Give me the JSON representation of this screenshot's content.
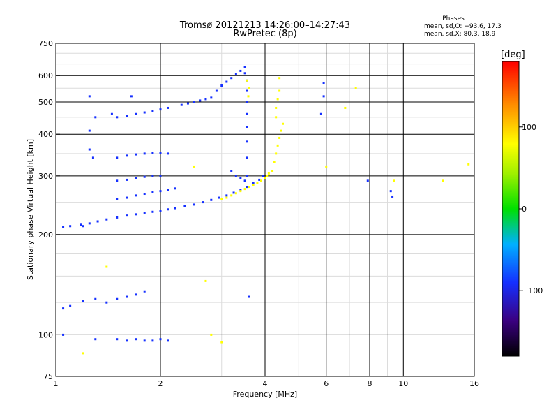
{
  "title_line1": "Tromsø 20121213 14:26:00–14:27:43",
  "title_line2": "RwPretec (8p)",
  "stats": {
    "title": "Phases",
    "o_line": "mean, sd,O:  −93.6, 17.3",
    "x_line": "mean, sd,X:  80.3, 18.9"
  },
  "colorbar": {
    "unit": "[deg]",
    "range": [
      -180,
      180
    ],
    "ticks": [
      {
        "value": 100,
        "label": "100"
      },
      {
        "value": 0,
        "label": "0"
      },
      {
        "value": -100,
        "label": "−100"
      }
    ]
  },
  "chart_data": {
    "type": "scatter",
    "xlabel": "Frequency [MHz]",
    "ylabel": "Stationary phase Virtual Height [km]",
    "xscale": "log",
    "yscale": "log",
    "xlim": [
      1,
      16
    ],
    "ylim": [
      75,
      750
    ],
    "xticks": [
      {
        "value": 1,
        "label": "1"
      },
      {
        "value": 2,
        "label": "2"
      },
      {
        "value": 4,
        "label": "4"
      },
      {
        "value": 6,
        "label": "6"
      },
      {
        "value": 8,
        "label": "8"
      },
      {
        "value": 10,
        "label": "10"
      },
      {
        "value": 16,
        "label": "16"
      }
    ],
    "yticks": [
      {
        "value": 75,
        "label": "75"
      },
      {
        "value": 100,
        "label": "100"
      },
      {
        "value": 200,
        "label": "200"
      },
      {
        "value": 300,
        "label": "300"
      },
      {
        "value": 400,
        "label": "400"
      },
      {
        "value": 500,
        "label": "500"
      },
      {
        "value": 600,
        "label": "600"
      },
      {
        "value": 750,
        "label": "750"
      }
    ],
    "grid_major_x": [
      2,
      4,
      6,
      8,
      10
    ],
    "grid_major_y": [
      100,
      200,
      300,
      400,
      500,
      600
    ],
    "grid_minor_x": [
      3,
      5,
      7,
      9
    ],
    "grid_minor_y": [
      125,
      150,
      175,
      250,
      350,
      450,
      550,
      650,
      700
    ],
    "color_scale": "rainbow, black (−180°) → blue (−100°) → cyan → green (0°) → yellow (+100°) → red (+180°)",
    "series": [
      {
        "name": "O",
        "phase_deg": -100,
        "points": [
          [
            1.05,
            211
          ],
          [
            1.1,
            212
          ],
          [
            1.18,
            214
          ],
          [
            1.25,
            216
          ],
          [
            1.32,
            219
          ],
          [
            1.4,
            222
          ],
          [
            1.5,
            225
          ],
          [
            1.6,
            228
          ],
          [
            1.7,
            230
          ],
          [
            1.8,
            232
          ],
          [
            1.9,
            234
          ],
          [
            2.0,
            236
          ],
          [
            2.1,
            238
          ],
          [
            2.2,
            240
          ],
          [
            2.35,
            243
          ],
          [
            2.5,
            246
          ],
          [
            2.65,
            250
          ],
          [
            2.8,
            254
          ],
          [
            2.95,
            258
          ],
          [
            3.1,
            262
          ],
          [
            3.25,
            267
          ],
          [
            3.4,
            272
          ],
          [
            3.55,
            278
          ],
          [
            3.7,
            285
          ],
          [
            3.85,
            292
          ],
          [
            3.95,
            300
          ],
          [
            1.5,
            255
          ],
          [
            1.6,
            258
          ],
          [
            1.7,
            262
          ],
          [
            1.8,
            265
          ],
          [
            1.9,
            268
          ],
          [
            2.0,
            270
          ],
          [
            2.1,
            272
          ],
          [
            2.2,
            275
          ],
          [
            1.5,
            290
          ],
          [
            1.6,
            292
          ],
          [
            1.7,
            295
          ],
          [
            1.8,
            298
          ],
          [
            1.9,
            300
          ],
          [
            2.0,
            300
          ],
          [
            1.5,
            340
          ],
          [
            1.6,
            345
          ],
          [
            1.7,
            348
          ],
          [
            1.8,
            350
          ],
          [
            1.9,
            352
          ],
          [
            2.0,
            352
          ],
          [
            2.1,
            350
          ],
          [
            1.5,
            450
          ],
          [
            1.6,
            455
          ],
          [
            1.7,
            460
          ],
          [
            1.8,
            465
          ],
          [
            1.9,
            470
          ],
          [
            2.0,
            475
          ],
          [
            2.1,
            480
          ],
          [
            2.3,
            490
          ],
          [
            2.4,
            495
          ],
          [
            2.5,
            500
          ],
          [
            2.6,
            505
          ],
          [
            2.7,
            510
          ],
          [
            2.8,
            515
          ],
          [
            2.9,
            540
          ],
          [
            3.0,
            560
          ],
          [
            3.1,
            575
          ],
          [
            3.2,
            590
          ],
          [
            3.3,
            605
          ],
          [
            3.4,
            620
          ],
          [
            3.5,
            635
          ],
          [
            3.55,
            300
          ],
          [
            3.55,
            340
          ],
          [
            3.55,
            380
          ],
          [
            3.55,
            420
          ],
          [
            3.55,
            460
          ],
          [
            3.55,
            500
          ],
          [
            3.55,
            540
          ],
          [
            3.55,
            580
          ],
          [
            3.5,
            610
          ],
          [
            3.2,
            310
          ],
          [
            3.3,
            300
          ],
          [
            3.4,
            295
          ],
          [
            3.5,
            290
          ],
          [
            1.05,
            120
          ],
          [
            1.1,
            122
          ],
          [
            1.2,
            126
          ],
          [
            1.3,
            128
          ],
          [
            1.4,
            125
          ],
          [
            1.5,
            128
          ],
          [
            1.6,
            130
          ],
          [
            1.7,
            132
          ],
          [
            1.8,
            135
          ],
          [
            1.05,
            100
          ],
          [
            1.3,
            97
          ],
          [
            1.5,
            97
          ],
          [
            1.6,
            96
          ],
          [
            1.7,
            97
          ],
          [
            1.8,
            96
          ],
          [
            1.9,
            96
          ],
          [
            2.0,
            97
          ],
          [
            2.1,
            96
          ],
          [
            1.25,
            410
          ],
          [
            1.3,
            450
          ],
          [
            1.25,
            520
          ],
          [
            1.45,
            460
          ],
          [
            1.65,
            520
          ],
          [
            1.25,
            360
          ],
          [
            1.28,
            340
          ],
          [
            5.9,
            570
          ],
          [
            5.9,
            520
          ],
          [
            5.8,
            460
          ],
          [
            7.9,
            290
          ],
          [
            9.2,
            270
          ],
          [
            9.3,
            260
          ],
          [
            3.6,
            130
          ],
          [
            1.2,
            212
          ]
        ]
      },
      {
        "name": "X",
        "phase_deg": 100,
        "points": [
          [
            3.0,
            255
          ],
          [
            3.1,
            258
          ],
          [
            3.2,
            262
          ],
          [
            3.3,
            266
          ],
          [
            3.4,
            270
          ],
          [
            3.5,
            274
          ],
          [
            3.6,
            278
          ],
          [
            3.7,
            282
          ],
          [
            3.8,
            286
          ],
          [
            3.9,
            290
          ],
          [
            4.0,
            295
          ],
          [
            4.05,
            300
          ],
          [
            4.1,
            305
          ],
          [
            4.2,
            310
          ],
          [
            4.25,
            330
          ],
          [
            4.3,
            350
          ],
          [
            4.35,
            370
          ],
          [
            4.4,
            390
          ],
          [
            4.45,
            410
          ],
          [
            4.5,
            430
          ],
          [
            4.3,
            450
          ],
          [
            4.3,
            480
          ],
          [
            4.35,
            510
          ],
          [
            4.4,
            540
          ],
          [
            3.55,
            580
          ],
          [
            3.6,
            550
          ],
          [
            3.58,
            520
          ],
          [
            4.4,
            590
          ],
          [
            2.5,
            320
          ],
          [
            1.4,
            160
          ],
          [
            2.7,
            145
          ],
          [
            2.8,
            100
          ],
          [
            6.0,
            320
          ],
          [
            6.8,
            480
          ],
          [
            7.3,
            550
          ],
          [
            13.0,
            290
          ],
          [
            15.4,
            325
          ],
          [
            9.4,
            290
          ],
          [
            3.0,
            95
          ],
          [
            1.2,
            88
          ]
        ]
      }
    ]
  }
}
